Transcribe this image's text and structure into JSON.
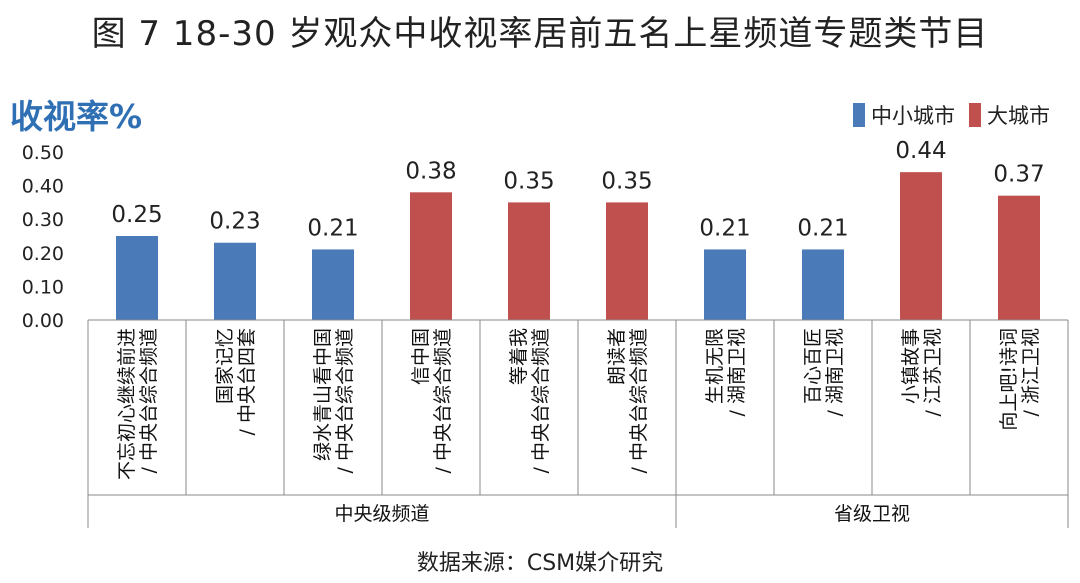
{
  "chart_data": {
    "type": "bar",
    "title": "图 7 18-30 岁观众中收视率居前五名上星频道专题类节目",
    "ylabel": "收视率%",
    "ylim": [
      0,
      0.5
    ],
    "yticks": [
      "0.00",
      "0.10",
      "0.20",
      "0.30",
      "0.40",
      "0.50"
    ],
    "legend_position": "top-right",
    "series": [
      {
        "name": "中小城市",
        "color": "#4a7ab8"
      },
      {
        "name": "大城市",
        "color": "#c0504d"
      }
    ],
    "categories": [
      {
        "line1": "不忘初心继续前进",
        "line2": "/ 中央台综合频道",
        "value": 0.25,
        "label": "0.25",
        "series": 0
      },
      {
        "line1": "国家记忆",
        "line2": "/ 中央台四套",
        "value": 0.23,
        "label": "0.23",
        "series": 0
      },
      {
        "line1": "绿水青山看中国",
        "line2": "/ 中央台综合频道",
        "value": 0.21,
        "label": "0.21",
        "series": 0
      },
      {
        "line1": "信中国",
        "line2": "/ 中央台综合频道",
        "value": 0.38,
        "label": "0.38",
        "series": 1
      },
      {
        "line1": "等着我",
        "line2": "/ 中央台综合频道",
        "value": 0.35,
        "label": "0.35",
        "series": 1
      },
      {
        "line1": "朗读者",
        "line2": "/ 中央台综合频道",
        "value": 0.35,
        "label": "0.35",
        "series": 1
      },
      {
        "line1": "生机无限",
        "line2": "/ 湖南卫视",
        "value": 0.21,
        "label": "0.21",
        "series": 0
      },
      {
        "line1": "百心百匠",
        "line2": "/ 湖南卫视",
        "value": 0.21,
        "label": "0.21",
        "series": 0
      },
      {
        "line1": "小镇故事",
        "line2": "/ 江苏卫视",
        "value": 0.44,
        "label": "0.44",
        "series": 1
      },
      {
        "line1": "向上吧!诗词",
        "line2": "/ 浙江卫视",
        "value": 0.37,
        "label": "0.37",
        "series": 1
      }
    ],
    "groups": [
      {
        "name": "中央级频道",
        "count": 6
      },
      {
        "name": "省级卫视",
        "count": 4
      }
    ]
  },
  "source": "数据来源：CSM媒介研究"
}
